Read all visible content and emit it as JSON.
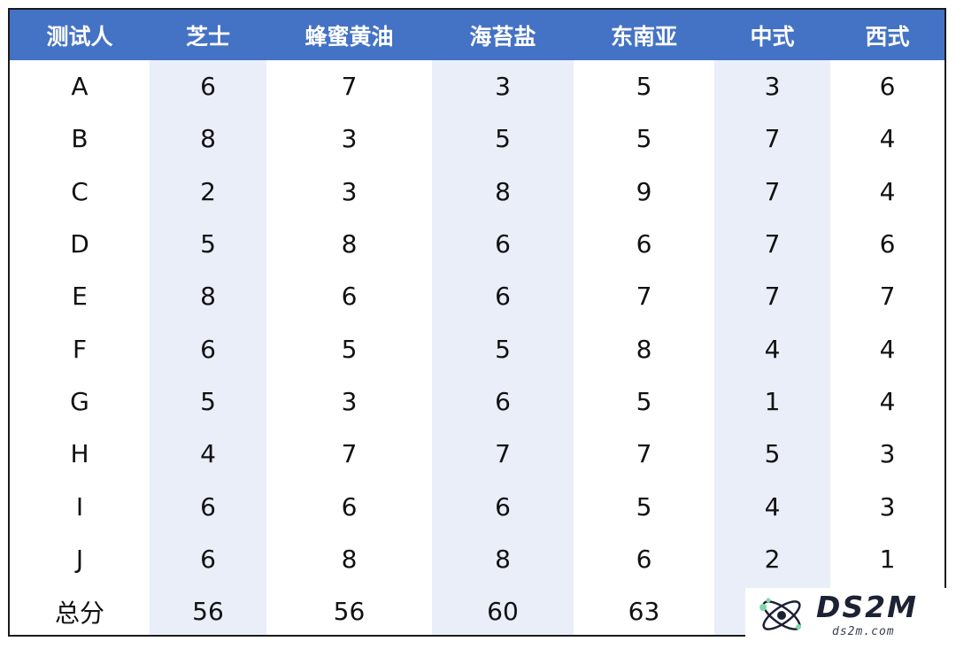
{
  "table": {
    "headers": [
      "测试人",
      "芝士",
      "蜂蜜黄油",
      "海苔盐",
      "东南亚",
      "中式",
      "西式"
    ],
    "rows": [
      [
        "A",
        "6",
        "7",
        "3",
        "5",
        "3",
        "6"
      ],
      [
        "B",
        "8",
        "3",
        "5",
        "5",
        "7",
        "4"
      ],
      [
        "C",
        "2",
        "3",
        "8",
        "9",
        "7",
        "4"
      ],
      [
        "D",
        "5",
        "8",
        "6",
        "6",
        "7",
        "6"
      ],
      [
        "E",
        "8",
        "6",
        "6",
        "7",
        "7",
        "7"
      ],
      [
        "F",
        "6",
        "5",
        "5",
        "8",
        "4",
        "4"
      ],
      [
        "G",
        "5",
        "3",
        "6",
        "5",
        "1",
        "4"
      ],
      [
        "H",
        "4",
        "7",
        "7",
        "7",
        "5",
        "3"
      ],
      [
        "I",
        "6",
        "6",
        "6",
        "5",
        "4",
        "3"
      ],
      [
        "J",
        "6",
        "8",
        "8",
        "6",
        "2",
        "1"
      ],
      [
        "总分",
        "56",
        "56",
        "60",
        "63",
        "",
        ""
      ]
    ]
  },
  "colors": {
    "header_bg": "#4472c4",
    "header_text": "#ffffff",
    "shaded_column": "#e9eef9"
  },
  "watermark": {
    "title": "DS2M",
    "url": "ds2m.com",
    "icon": "atom-logo-icon"
  }
}
